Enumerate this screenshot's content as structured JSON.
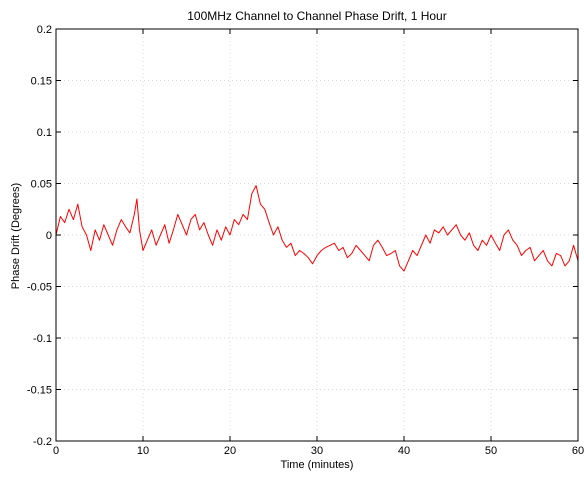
{
  "chart_data": {
    "type": "line",
    "title": "100MHz Channel to Channel Phase Drift, 1 Hour",
    "xlabel": "Time (minutes)",
    "ylabel": "Phase Drift (Degrees)",
    "xlim": [
      0,
      60
    ],
    "ylim": [
      -0.2,
      0.2
    ],
    "xticks": [
      0,
      10,
      20,
      30,
      40,
      50,
      60
    ],
    "yticks": [
      -0.2,
      -0.15,
      -0.1,
      -0.05,
      0,
      0.05,
      0.1,
      0.15,
      0.2
    ],
    "xtick_labels": [
      "0",
      "10",
      "20",
      "30",
      "40",
      "50",
      "60"
    ],
    "ytick_labels": [
      "-0.2",
      "-0.15",
      "-0.1",
      "-0.05",
      "0",
      "0.05",
      "0.1",
      "0.15",
      "0.2"
    ],
    "grid": true,
    "line_color": "#ff0000",
    "series": [
      {
        "x": [
          0,
          0.5,
          1,
          1.5,
          2,
          2.5,
          3,
          3.5,
          4,
          4.5,
          5,
          5.5,
          6,
          6.5,
          7,
          7.5,
          8,
          8.5,
          9,
          9.3,
          9.6,
          10,
          10.5,
          11,
          11.5,
          12,
          12.5,
          13,
          13.5,
          14,
          14.5,
          15,
          15.5,
          16,
          16.5,
          17,
          17.5,
          18,
          18.5,
          19,
          19.5,
          20,
          20.5,
          21,
          21.5,
          22,
          22.5,
          23,
          23.5,
          24,
          24.5,
          25,
          25.5,
          26,
          26.5,
          27,
          27.5,
          28,
          28.5,
          29,
          29.5,
          30,
          30.5,
          31,
          31.5,
          32,
          32.5,
          33,
          33.5,
          34,
          34.5,
          35,
          35.5,
          36,
          36.5,
          37,
          37.5,
          38,
          38.5,
          39,
          39.5,
          40,
          40.5,
          41,
          41.5,
          42,
          42.5,
          43,
          43.5,
          44,
          44.5,
          45,
          45.5,
          46,
          46.5,
          47,
          47.5,
          48,
          48.5,
          49,
          49.5,
          50,
          50.5,
          51,
          51.5,
          52,
          52.5,
          53,
          53.5,
          54,
          54.5,
          55,
          55.5,
          56,
          56.5,
          57,
          57.5,
          58,
          58.5,
          59,
          59.5,
          60
        ],
        "y": [
          0.0,
          0.018,
          0.012,
          0.025,
          0.015,
          0.03,
          0.008,
          0.0,
          -0.015,
          0.005,
          -0.005,
          0.01,
          0.0,
          -0.01,
          0.005,
          0.015,
          0.008,
          0.002,
          0.02,
          0.035,
          0.005,
          -0.015,
          -0.005,
          0.005,
          -0.01,
          0.0,
          0.01,
          -0.008,
          0.005,
          0.02,
          0.01,
          0.0,
          0.015,
          0.02,
          0.005,
          0.012,
          0.0,
          -0.01,
          0.005,
          -0.005,
          0.008,
          0.0,
          0.015,
          0.01,
          0.02,
          0.015,
          0.04,
          0.048,
          0.03,
          0.025,
          0.012,
          0.0,
          0.008,
          -0.005,
          -0.012,
          -0.008,
          -0.02,
          -0.015,
          -0.018,
          -0.022,
          -0.028,
          -0.02,
          -0.015,
          -0.012,
          -0.01,
          -0.008,
          -0.015,
          -0.012,
          -0.022,
          -0.018,
          -0.01,
          -0.015,
          -0.02,
          -0.025,
          -0.01,
          -0.005,
          -0.012,
          -0.02,
          -0.018,
          -0.015,
          -0.03,
          -0.035,
          -0.025,
          -0.015,
          -0.02,
          -0.01,
          0.0,
          -0.008,
          0.005,
          0.002,
          0.008,
          0.0,
          0.005,
          0.01,
          0.0,
          -0.005,
          0.002,
          -0.01,
          -0.015,
          -0.005,
          -0.01,
          0.0,
          -0.008,
          -0.015,
          0.0,
          0.005,
          -0.005,
          -0.01,
          -0.02,
          -0.015,
          -0.012,
          -0.025,
          -0.02,
          -0.015,
          -0.025,
          -0.03,
          -0.018,
          -0.02,
          -0.03,
          -0.025,
          -0.01,
          -0.025
        ]
      }
    ]
  }
}
